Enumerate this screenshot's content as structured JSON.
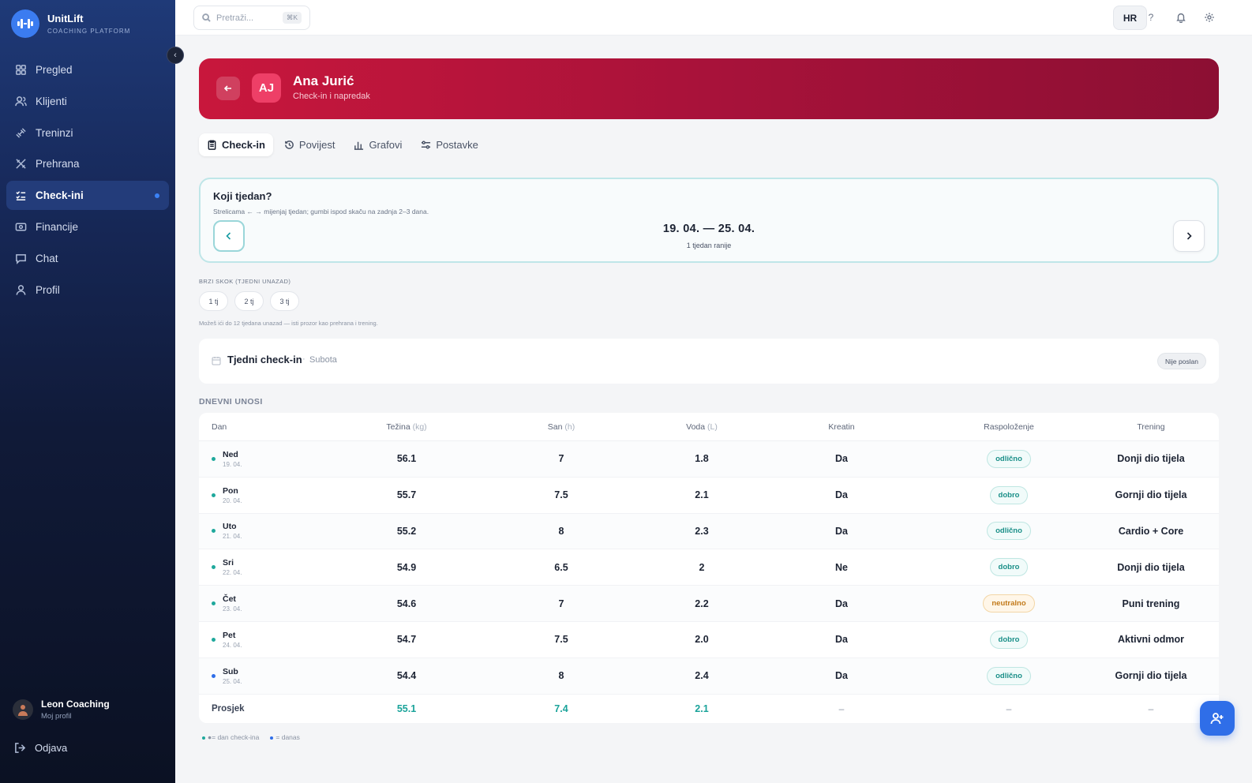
{
  "app": {
    "name": "UnitLift",
    "tagline": "COACHING PLATFORM"
  },
  "sidebar": {
    "items": [
      {
        "label": "Pregled",
        "icon": "grid-icon"
      },
      {
        "label": "Klijenti",
        "icon": "users-icon"
      },
      {
        "label": "Treninzi",
        "icon": "dumbbell-icon"
      },
      {
        "label": "Prehrana",
        "icon": "utensils-icon"
      },
      {
        "label": "Check-ini",
        "icon": "checklist-icon",
        "active": true
      },
      {
        "label": "Financije",
        "icon": "wallet-icon"
      },
      {
        "label": "Chat",
        "icon": "chat-icon"
      },
      {
        "label": "Profil",
        "icon": "user-icon"
      }
    ],
    "user": {
      "name": "Leon Coaching",
      "subtitle": "Moj profil"
    },
    "logout": "Odjava"
  },
  "topbar": {
    "search_placeholder": "Pretraži...",
    "shortcut": "⌘K",
    "language": "HR"
  },
  "client": {
    "initials": "AJ",
    "name": "Ana Jurić",
    "subtitle": "Check-in i napredak"
  },
  "tabs": [
    {
      "label": "Check-in",
      "icon": "clipboard-icon",
      "active": true
    },
    {
      "label": "Povijest",
      "icon": "history-icon"
    },
    {
      "label": "Grafovi",
      "icon": "bar-chart-icon"
    },
    {
      "label": "Postavke",
      "icon": "sliders-icon"
    }
  ],
  "week": {
    "title": "Koji tjedan?",
    "hint": "Strelicama ← → mijenjaj tjedan; gumbi ispod skaču na zadnja 2–3 dana.",
    "range": "19. 04. — 25. 04.",
    "relative": "1 tjedan ranije"
  },
  "quick_jump": {
    "label": "BRZI SKOK (TJEDNI UNAZAD)",
    "buttons": [
      "1 tj",
      "2 tj",
      "3 tj"
    ],
    "note": "Možeš ići do 12 tjedana unazad — isti prozor kao prehrana i trening."
  },
  "weekly_checkin": {
    "title": "Tjedni check-in",
    "separator": "·",
    "day": "Subota",
    "status": "Nije poslan"
  },
  "daily": {
    "label": "DNEVNI UNOSI",
    "headers": {
      "day": "Dan",
      "weight": "Težina",
      "weight_unit": "(kg)",
      "sleep": "San",
      "sleep_unit": "(h)",
      "water": "Voda",
      "water_unit": "(L)",
      "creatine": "Kreatin",
      "mood": "Raspoloženje",
      "training": "Trening"
    },
    "rows": [
      {
        "day": "Ned",
        "date": "19. 04.",
        "weight": "56.1",
        "sleep": "7",
        "water": "1.8",
        "creatine": "Da",
        "mood": "odlično",
        "mood_tone": "teal",
        "training": "Donji dio tijela",
        "today": false
      },
      {
        "day": "Pon",
        "date": "20. 04.",
        "weight": "55.7",
        "sleep": "7.5",
        "water": "2.1",
        "creatine": "Da",
        "mood": "dobro",
        "mood_tone": "teal",
        "training": "Gornji dio tijela",
        "today": false
      },
      {
        "day": "Uto",
        "date": "21. 04.",
        "weight": "55.2",
        "sleep": "8",
        "water": "2.3",
        "creatine": "Da",
        "mood": "odlično",
        "mood_tone": "teal",
        "training": "Cardio + Core",
        "today": false
      },
      {
        "day": "Sri",
        "date": "22. 04.",
        "weight": "54.9",
        "sleep": "6.5",
        "water": "2",
        "creatine": "Ne",
        "mood": "dobro",
        "mood_tone": "teal",
        "training": "Donji dio tijela",
        "today": false
      },
      {
        "day": "Čet",
        "date": "23. 04.",
        "weight": "54.6",
        "sleep": "7",
        "water": "2.2",
        "creatine": "Da",
        "mood": "neutralno",
        "mood_tone": "amber",
        "training": "Puni trening",
        "today": false
      },
      {
        "day": "Pet",
        "date": "24. 04.",
        "weight": "54.7",
        "sleep": "7.5",
        "water": "2.0",
        "creatine": "Da",
        "mood": "dobro",
        "mood_tone": "teal",
        "training": "Aktivni odmor",
        "today": false
      },
      {
        "day": "Sub",
        "date": "25. 04.",
        "weight": "54.4",
        "sleep": "8",
        "water": "2.4",
        "creatine": "Da",
        "mood": "odlično",
        "mood_tone": "teal",
        "training": "Gornji dio tijela",
        "today": true
      }
    ],
    "average": {
      "label": "Prosjek",
      "weight": "55.1",
      "sleep": "7.4",
      "water": "2.1",
      "creatine": "–",
      "mood": "–",
      "training": "–"
    }
  },
  "legend": {
    "checkin": "●= dan check-ina",
    "today": "= danas"
  },
  "colors": {
    "accent": "#2f6ee8",
    "hero": "#b0143b",
    "teal": "#1aa39a",
    "amber": "#c27a1a"
  }
}
